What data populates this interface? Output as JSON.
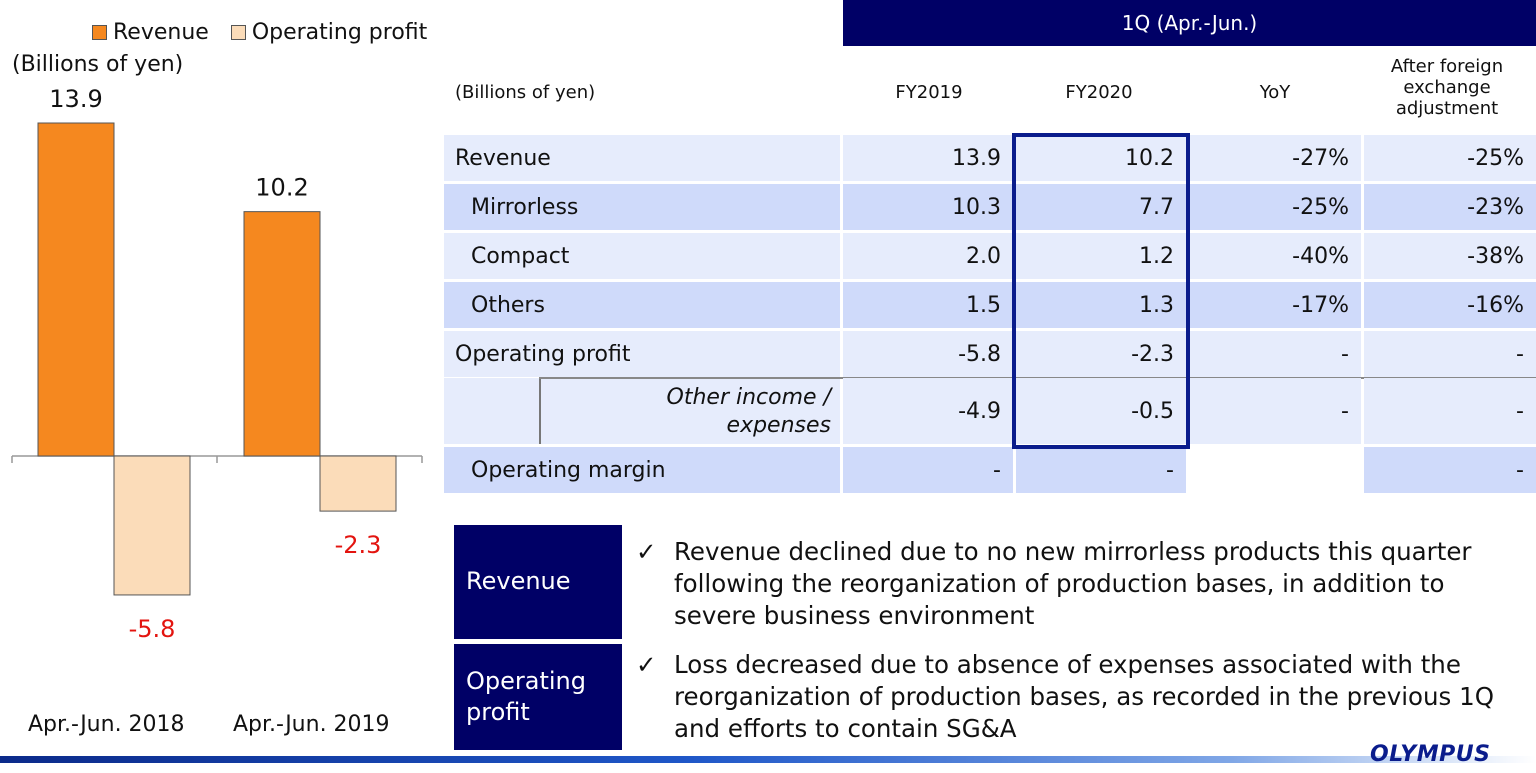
{
  "chart_data": {
    "type": "bar",
    "categories": [
      "Apr.-Jun. 2018",
      "Apr.-Jun. 2019"
    ],
    "series": [
      {
        "name": "Revenue",
        "values": [
          13.9,
          10.2
        ],
        "color": "#F5881F"
      },
      {
        "name": "Operating profit",
        "values": [
          -5.8,
          -2.3
        ],
        "color": "#FBDCB9"
      }
    ],
    "value_labels": [
      [
        "13.9",
        "10.2"
      ],
      [
        "-5.8",
        "-2.3"
      ]
    ],
    "negative_label_color": "#E3140F",
    "unit_label": "(Billions of yen)",
    "ylim": [
      -5.8,
      13.9
    ]
  },
  "table": {
    "header": "1Q (Apr.-Jun.)",
    "unit": "(Billions of yen)",
    "columns": [
      "FY2019",
      "FY2020",
      "YoY",
      "After foreign exchange adjustment"
    ],
    "rows": [
      {
        "label": "Revenue",
        "fy2019": "13.9",
        "fy2020": "10.2",
        "yoy": "-27%",
        "fx": "-25%"
      },
      {
        "label": "Mirrorless",
        "fy2019": "10.3",
        "fy2020": "7.7",
        "yoy": "-25%",
        "fx": "-23%"
      },
      {
        "label": "Compact",
        "fy2019": "2.0",
        "fy2020": "1.2",
        "yoy": "-40%",
        "fx": "-38%"
      },
      {
        "label": "Others",
        "fy2019": "1.5",
        "fy2020": "1.3",
        "yoy": "-17%",
        "fx": "-16%"
      },
      {
        "label": "Operating profit",
        "fy2019": "-5.8",
        "fy2020": "-2.3",
        "yoy": "-",
        "fx": "-"
      },
      {
        "label": "Other income / expenses",
        "fy2019": "-4.9",
        "fy2020": "-0.5",
        "yoy": "-",
        "fx": "-"
      },
      {
        "label": "Operating margin",
        "fy2019": "-",
        "fy2020": "-",
        "yoy": "",
        "fx": "-"
      }
    ]
  },
  "notes": [
    {
      "label": "Revenue",
      "text": "Revenue declined due to no new mirrorless products this quarter following the reorganization of production bases, in addition to severe business environment"
    },
    {
      "label": "Operating profit",
      "text": "Loss decreased due to absence of expenses associated with the reorganization of production bases, as recorded in the previous 1Q and efforts to contain SG&A"
    }
  ],
  "check_mark": "✓",
  "logo_text": "OLYMPUS",
  "colors": {
    "navy": "#000066",
    "highlight_border": "#0A1C8C"
  }
}
